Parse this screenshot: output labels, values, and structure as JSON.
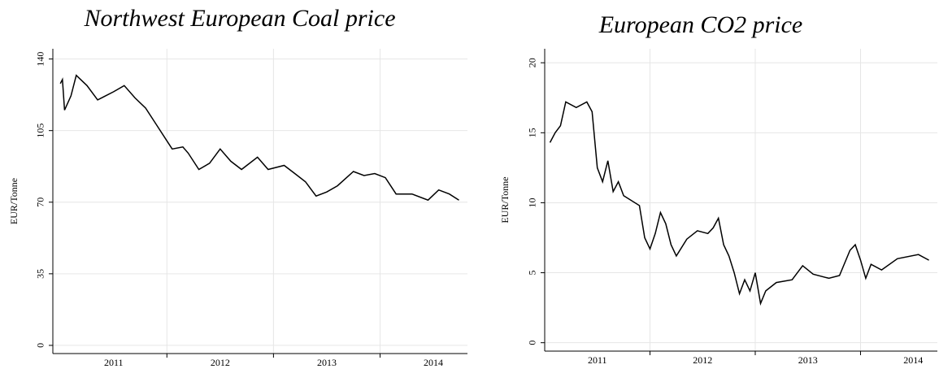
{
  "chart_data": [
    {
      "type": "line",
      "title": "Northwest European Coal price",
      "y_label": "EUR/Tonne",
      "x": [
        2011.0,
        2011.02,
        2011.04,
        2011.1,
        2011.15,
        2011.25,
        2011.35,
        2011.5,
        2011.6,
        2011.7,
        2011.8,
        2011.9,
        2012.0,
        2012.05,
        2012.15,
        2012.2,
        2012.3,
        2012.4,
        2012.5,
        2012.6,
        2012.7,
        2012.85,
        2012.95,
        2013.1,
        2013.2,
        2013.3,
        2013.4,
        2013.5,
        2013.6,
        2013.75,
        2013.85,
        2013.95,
        2014.05,
        2014.15,
        2014.3,
        2014.45,
        2014.55,
        2014.65,
        2014.74
      ],
      "values": [
        128,
        130,
        115,
        122,
        132,
        127,
        120,
        124,
        127,
        121,
        116,
        108,
        100,
        96,
        97,
        94,
        86,
        89,
        96,
        90,
        86,
        92,
        86,
        88,
        84,
        80,
        73,
        75,
        78,
        85,
        83,
        84,
        82,
        74,
        74,
        71,
        76,
        74,
        71
      ],
      "color": "#000000",
      "xlim": [
        2010.93,
        2014.82
      ],
      "xticks": [
        {
          "value": 2011,
          "label": "2011"
        },
        {
          "value": 2012,
          "label": "2012"
        },
        {
          "value": 2013,
          "label": "2013"
        },
        {
          "value": 2014,
          "label": "2014"
        }
      ],
      "ylim": [
        -4,
        145
      ],
      "yticks": [
        0,
        35,
        70,
        105,
        140
      ],
      "grid": true
    },
    {
      "type": "line",
      "title": "European CO2 price",
      "y_label": "EUR/Tonne",
      "x": [
        2011.05,
        2011.1,
        2011.15,
        2011.2,
        2011.3,
        2011.4,
        2011.45,
        2011.5,
        2011.55,
        2011.6,
        2011.65,
        2011.7,
        2011.75,
        2011.9,
        2011.95,
        2012.0,
        2012.05,
        2012.1,
        2012.15,
        2012.2,
        2012.25,
        2012.35,
        2012.45,
        2012.55,
        2012.6,
        2012.65,
        2012.7,
        2012.75,
        2012.8,
        2012.85,
        2012.9,
        2012.95,
        2013.0,
        2013.05,
        2013.1,
        2013.2,
        2013.35,
        2013.45,
        2013.55,
        2013.7,
        2013.8,
        2013.9,
        2013.95,
        2014.0,
        2014.05,
        2014.1,
        2014.2,
        2014.35,
        2014.55,
        2014.65
      ],
      "values": [
        14.3,
        15,
        15.5,
        17.2,
        16.8,
        17.2,
        16.5,
        12.5,
        11.5,
        13,
        10.8,
        11.5,
        10.5,
        9.8,
        7.5,
        6.7,
        7.8,
        9.3,
        8.5,
        7,
        6.2,
        7.4,
        8,
        7.8,
        8.2,
        8.9,
        7,
        6.2,
        5,
        3.5,
        4.5,
        3.7,
        5.0,
        2.8,
        3.7,
        4.3,
        4.5,
        5.5,
        4.9,
        4.6,
        4.8,
        6.6,
        7.0,
        5.9,
        4.6,
        5.6,
        5.2,
        6,
        6.3,
        5.9
      ],
      "color": "#000000",
      "xlim": [
        2011.0,
        2014.73
      ],
      "xticks": [
        {
          "value": 2011,
          "label": "2011"
        },
        {
          "value": 2012,
          "label": "2012"
        },
        {
          "value": 2013,
          "label": "2013"
        },
        {
          "value": 2014,
          "label": "2014"
        }
      ],
      "ylim": [
        -0.6,
        21
      ],
      "yticks": [
        0,
        5,
        10,
        15,
        20
      ],
      "grid": true
    }
  ]
}
